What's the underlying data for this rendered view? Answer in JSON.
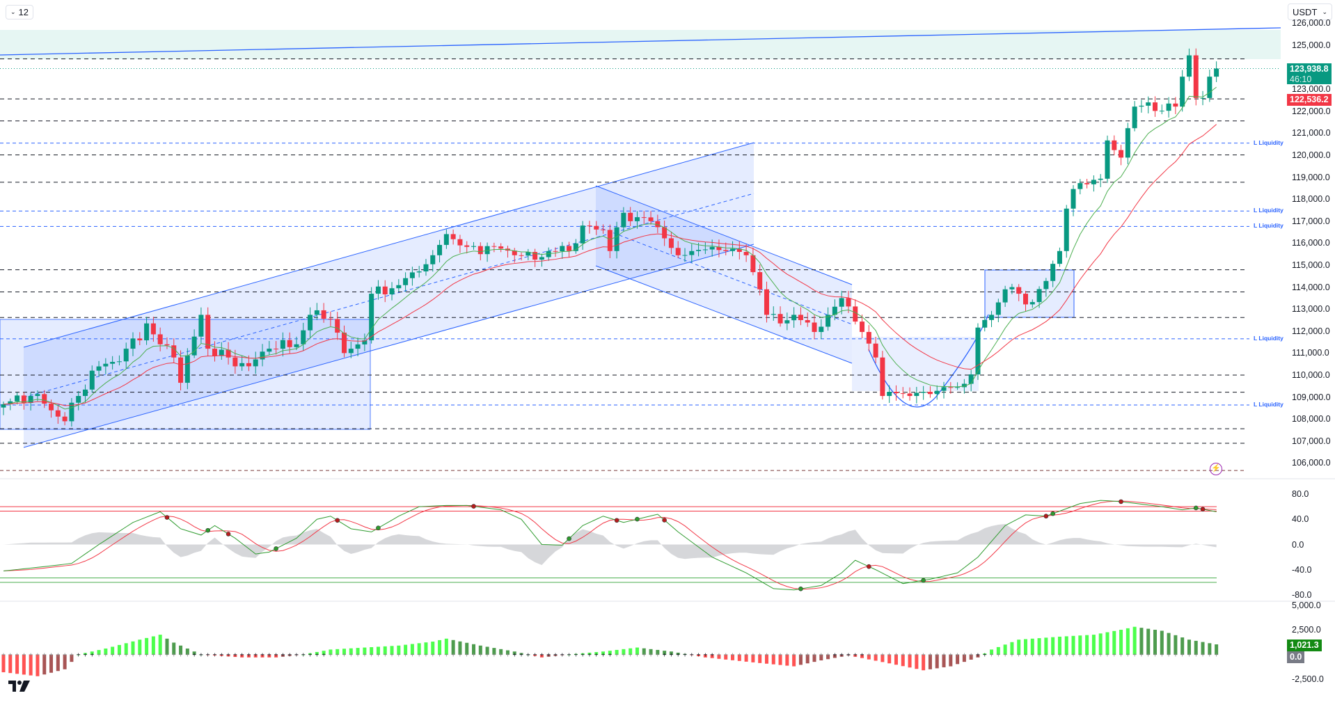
{
  "toolbar": {
    "interval_label": "12",
    "currency_label": "USDT"
  },
  "price_tags": {
    "last": "123,938.8",
    "countdown": "46:10",
    "prev": "122,536.2",
    "hist_value": "1,021.3",
    "hist_zero": "0.0"
  },
  "colors": {
    "up": "#089981",
    "down": "#f23645",
    "ma_fast": "#4caf50",
    "ma_slow": "#f23645",
    "drawing": "#2962ff",
    "osc_fast": "#2e9b2e",
    "osc_slow": "#f23645",
    "hist_up_strong": "#4cff4c",
    "hist_up_weak": "#4e9c4e",
    "hist_dn_strong": "#ff5252",
    "hist_dn_weak": "#a85555"
  },
  "liquidity_label": "L Liquidity",
  "chart_data": [
    {
      "type": "candlestick",
      "pane": "price",
      "currency": "USDT",
      "ylim": [
        105500,
        126000
      ],
      "y_ticks": [
        "126,000.0",
        "125,000.0",
        "123,000.0",
        "122,000.0",
        "121,000.0",
        "120,000.0",
        "119,000.0",
        "118,000.0",
        "117,000.0",
        "116,000.0",
        "115,000.0",
        "114,000.0",
        "113,000.0",
        "112,000.0",
        "111,000.0",
        "110,000.0",
        "109,000.0",
        "108,000.0",
        "107,000.0",
        "106,000.0"
      ],
      "bars": 179,
      "close_waypoints": [
        [
          0,
          108675
        ],
        [
          4,
          109050
        ],
        [
          6,
          108700
        ],
        [
          9,
          107900
        ],
        [
          11,
          109050
        ],
        [
          13,
          110200
        ],
        [
          16,
          110600
        ],
        [
          18,
          111200
        ],
        [
          20,
          111580
        ],
        [
          21,
          112350
        ],
        [
          23,
          111400
        ],
        [
          25,
          110800
        ],
        [
          26,
          109650
        ],
        [
          29,
          112740
        ],
        [
          30,
          111200
        ],
        [
          33,
          110800
        ],
        [
          36,
          110400
        ],
        [
          39,
          111200
        ],
        [
          43,
          111400
        ],
        [
          45,
          112740
        ],
        [
          48,
          112550
        ],
        [
          50,
          111000
        ],
        [
          53,
          111580
        ],
        [
          54,
          113700
        ],
        [
          58,
          114090
        ],
        [
          60,
          114670
        ],
        [
          63,
          115450
        ],
        [
          65,
          116410
        ],
        [
          68,
          115830
        ],
        [
          73,
          115750
        ],
        [
          75,
          115450
        ],
        [
          78,
          115250
        ],
        [
          80,
          115640
        ],
        [
          83,
          115640
        ],
        [
          85,
          116800
        ],
        [
          88,
          116600
        ],
        [
          89,
          115640
        ],
        [
          91,
          117380
        ],
        [
          93,
          117180
        ],
        [
          95,
          117000
        ],
        [
          97,
          116220
        ],
        [
          99,
          115450
        ],
        [
          101,
          115640
        ],
        [
          104,
          115830
        ],
        [
          106,
          115640
        ],
        [
          109,
          115450
        ],
        [
          111,
          113900
        ],
        [
          112,
          112740
        ],
        [
          114,
          112350
        ],
        [
          116,
          112740
        ],
        [
          119,
          111960
        ],
        [
          121,
          112740
        ],
        [
          123,
          113500
        ],
        [
          124,
          113120
        ],
        [
          126,
          111960
        ],
        [
          128,
          110800
        ],
        [
          129,
          109050
        ],
        [
          130,
          109240
        ],
        [
          133,
          109050
        ],
        [
          135,
          109240
        ],
        [
          138,
          109450
        ],
        [
          140,
          109450
        ],
        [
          142,
          110030
        ],
        [
          143,
          112160
        ],
        [
          145,
          112740
        ],
        [
          147,
          113900
        ],
        [
          149,
          113700
        ],
        [
          151,
          113320
        ],
        [
          153,
          114280
        ],
        [
          155,
          115640
        ],
        [
          156,
          117570
        ],
        [
          158,
          118730
        ],
        [
          161,
          118930
        ],
        [
          162,
          120670
        ],
        [
          164,
          119890
        ],
        [
          166,
          122210
        ],
        [
          168,
          122400
        ],
        [
          170,
          122020
        ],
        [
          172,
          122210
        ],
        [
          173,
          123570
        ],
        [
          174,
          124540
        ],
        [
          175,
          122600
        ],
        [
          176,
          122600
        ],
        [
          177,
          123570
        ],
        [
          178,
          123939
        ]
      ],
      "last_price": 123938.8,
      "prev_price": 122536.2,
      "resistance_support_levels": [
        124380,
        122560,
        121560,
        120010,
        118770,
        114790,
        113780,
        112620,
        110000,
        109220,
        107560,
        106900
      ],
      "low_level": 105660,
      "liquidity_levels": [
        120550,
        117460,
        116760,
        111650,
        108640
      ]
    },
    {
      "type": "line",
      "pane": "oscillator",
      "ylim": [
        -80,
        80
      ],
      "y_ticks": [
        "80.0",
        "40.0",
        "0.0",
        "-40.0",
        "-80.0"
      ],
      "levels_upper": [
        60,
        53
      ],
      "levels_lower": [
        -53,
        -60
      ],
      "fast_waypoints": [
        [
          0,
          -42
        ],
        [
          6,
          -35
        ],
        [
          10,
          -30
        ],
        [
          14,
          0
        ],
        [
          19,
          35
        ],
        [
          23,
          52
        ],
        [
          26,
          25
        ],
        [
          29,
          15
        ],
        [
          31,
          30
        ],
        [
          34,
          10
        ],
        [
          37,
          -15
        ],
        [
          39,
          -12
        ],
        [
          43,
          10
        ],
        [
          46,
          40
        ],
        [
          48,
          45
        ],
        [
          51,
          25
        ],
        [
          54,
          20
        ],
        [
          58,
          45
        ],
        [
          61,
          60
        ],
        [
          65,
          62
        ],
        [
          68,
          62
        ],
        [
          73,
          55
        ],
        [
          76,
          40
        ],
        [
          79,
          0
        ],
        [
          82,
          -1
        ],
        [
          85,
          30
        ],
        [
          88,
          45
        ],
        [
          91,
          35
        ],
        [
          96,
          48
        ],
        [
          99,
          20
        ],
        [
          104,
          -20
        ],
        [
          109,
          -45
        ],
        [
          113,
          -70
        ],
        [
          116,
          -72
        ],
        [
          120,
          -65
        ],
        [
          123,
          -45
        ],
        [
          125,
          -25
        ],
        [
          128,
          -40
        ],
        [
          132,
          -62
        ],
        [
          136,
          -55
        ],
        [
          140,
          -45
        ],
        [
          143,
          -20
        ],
        [
          147,
          30
        ],
        [
          150,
          47
        ],
        [
          153,
          45
        ],
        [
          158,
          65
        ],
        [
          161,
          70
        ],
        [
          164,
          68
        ],
        [
          167,
          64
        ],
        [
          170,
          60
        ],
        [
          173,
          55
        ],
        [
          175,
          58
        ],
        [
          178,
          52
        ]
      ]
    },
    {
      "type": "histogram",
      "pane": "momentum",
      "ylim": [
        -3500,
        5500
      ],
      "y_ticks": [
        "5,000.0",
        "2,500.0",
        "-2,500.0"
      ],
      "last_value": 1021.3,
      "waypoints": [
        [
          0,
          -1800
        ],
        [
          5,
          -2200
        ],
        [
          9,
          -1500
        ],
        [
          11,
          0
        ],
        [
          15,
          600
        ],
        [
          20,
          1500
        ],
        [
          23,
          2000
        ],
        [
          25,
          1200
        ],
        [
          29,
          0
        ],
        [
          35,
          -300
        ],
        [
          40,
          -300
        ],
        [
          44,
          0
        ],
        [
          48,
          500
        ],
        [
          53,
          700
        ],
        [
          58,
          900
        ],
        [
          63,
          1300
        ],
        [
          65,
          1600
        ],
        [
          70,
          900
        ],
        [
          75,
          300
        ],
        [
          79,
          -300
        ],
        [
          83,
          0
        ],
        [
          88,
          300
        ],
        [
          93,
          700
        ],
        [
          98,
          300
        ],
        [
          103,
          -300
        ],
        [
          110,
          -800
        ],
        [
          116,
          -1200
        ],
        [
          120,
          -600
        ],
        [
          124,
          -100
        ],
        [
          130,
          -900
        ],
        [
          135,
          -1600
        ],
        [
          139,
          -1200
        ],
        [
          143,
          -300
        ],
        [
          145,
          500
        ],
        [
          149,
          1500
        ],
        [
          155,
          1800
        ],
        [
          160,
          2000
        ],
        [
          164,
          2500
        ],
        [
          166,
          2800
        ],
        [
          170,
          2400
        ],
        [
          174,
          1500
        ],
        [
          178,
          1021
        ]
      ]
    }
  ]
}
